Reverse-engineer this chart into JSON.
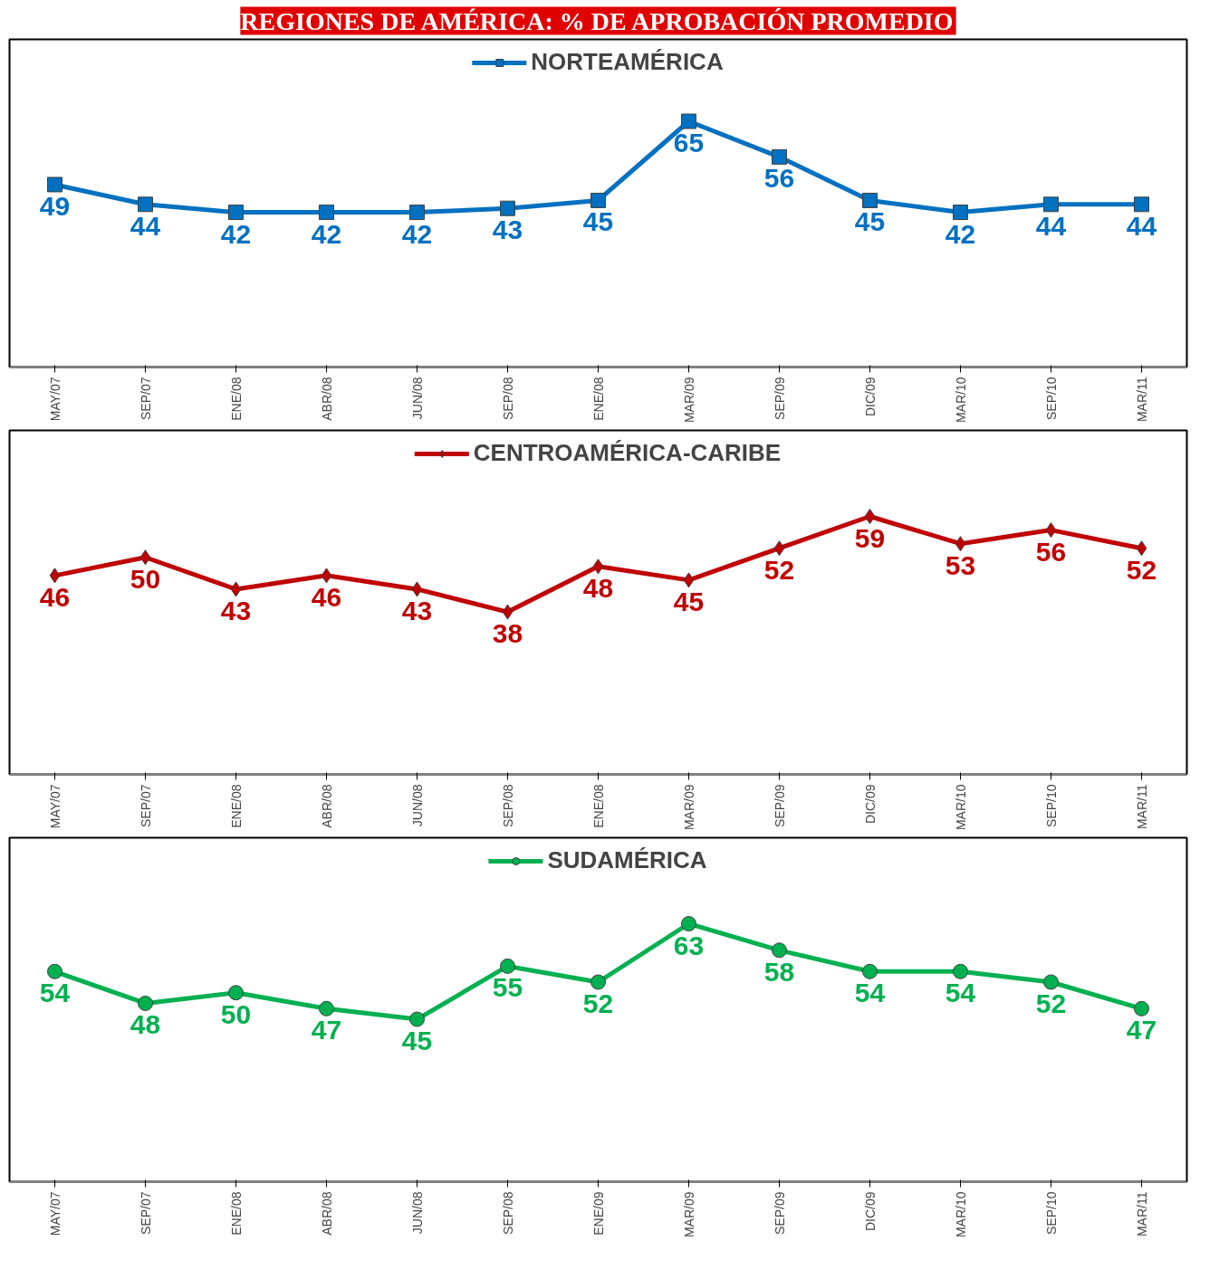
{
  "chart_data": [
    {
      "type": "line",
      "title": "REGIONES DE AMÉRICA: % DE APROBACIÓN PROMEDIO",
      "categories": [
        "MAY/07",
        "SEP/07",
        "ENE/08",
        "ABR/08",
        "JUN/08",
        "SEP/08",
        "ENE/08",
        "MAR/09",
        "SEP/09",
        "DIC/09",
        "MAR/10",
        "SEP/10",
        "MAR/11"
      ],
      "series": [
        {
          "name": "NORTEAMÉRICA",
          "color": "#0070c0",
          "values": [
            49,
            44,
            42,
            42,
            42,
            43,
            45,
            65,
            56,
            45,
            42,
            44,
            44
          ]
        }
      ],
      "data_labels": true,
      "marker": "square",
      "legend": "top",
      "grid": false,
      "tick_labels": "x"
    },
    {
      "type": "line",
      "categories": [
        "MAY/07",
        "SEP/07",
        "ENE/08",
        "ABR/08",
        "JUN/08",
        "SEP/08",
        "ENE/08",
        "MAR/09",
        "SEP/09",
        "DIC/09",
        "MAR/10",
        "SEP/10",
        "MAR/11"
      ],
      "series": [
        {
          "name": "CENTROAMÉRICA-CARIBE",
          "color": "#c00000",
          "values": [
            46,
            50,
            43,
            46,
            43,
            38,
            48,
            45,
            52,
            59,
            53,
            56,
            52
          ]
        }
      ],
      "data_labels": true,
      "marker": "diamond",
      "legend": "top",
      "grid": false,
      "tick_labels": "x"
    },
    {
      "type": "line",
      "categories": [
        "MAY/07",
        "SEP/07",
        "ENE/08",
        "ABR/08",
        "JUN/08",
        "SEP/08",
        "ENE/09",
        "MAR/09",
        "SEP/09",
        "DIC/09",
        "MAR/10",
        "SEP/10",
        "MAR/11"
      ],
      "series": [
        {
          "name": "SUDAMÉRICA",
          "color": "#00b050",
          "values": [
            54,
            48,
            50,
            47,
            45,
            55,
            52,
            63,
            58,
            54,
            54,
            52,
            47
          ]
        }
      ],
      "data_labels": true,
      "marker": "circle",
      "legend": "top",
      "grid": false,
      "tick_labels": "x"
    }
  ]
}
